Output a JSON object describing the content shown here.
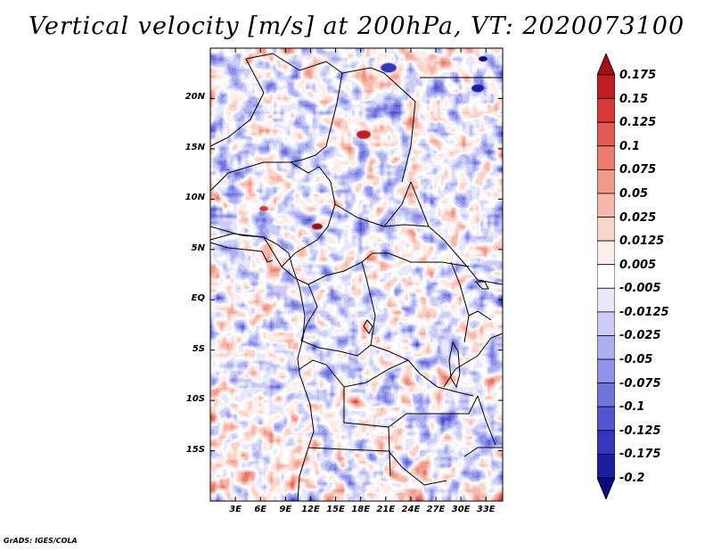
{
  "title": "Vertical velocity [m/s] at 200hPa, VT: 2020073100",
  "footer": "GrADS: IGES/COLA",
  "map": {
    "lon_range": [
      0,
      35
    ],
    "lat_range": [
      -20,
      25
    ],
    "lat_labels": [
      {
        "lat": 20,
        "label": "20N"
      },
      {
        "lat": 15,
        "label": "15N"
      },
      {
        "lat": 10,
        "label": "10N"
      },
      {
        "lat": 5,
        "label": "5N"
      },
      {
        "lat": 0,
        "label": "EQ"
      },
      {
        "lat": -5,
        "label": "5S"
      },
      {
        "lat": -10,
        "label": "10S"
      },
      {
        "lat": -15,
        "label": "15S"
      }
    ],
    "lon_labels": [
      {
        "lon": 3,
        "label": "3E"
      },
      {
        "lon": 6,
        "label": "6E"
      },
      {
        "lon": 9,
        "label": "9E"
      },
      {
        "lon": 12,
        "label": "12E"
      },
      {
        "lon": 15,
        "label": "15E"
      },
      {
        "lon": 18,
        "label": "18E"
      },
      {
        "lon": 21,
        "label": "21E"
      },
      {
        "lon": 24,
        "label": "24E"
      },
      {
        "lon": 27,
        "label": "27E"
      },
      {
        "lon": 30,
        "label": "30E"
      },
      {
        "lon": 33,
        "label": "33E"
      }
    ]
  },
  "colorbar": {
    "labels": [
      "0.175",
      "0.15",
      "0.125",
      "0.1",
      "0.075",
      "0.05",
      "0.025",
      "0.0125",
      "0.005",
      "-0.005",
      "-0.0125",
      "-0.025",
      "-0.05",
      "-0.075",
      "-0.1",
      "-0.125",
      "-0.175",
      "-0.2"
    ],
    "colors": [
      "#a10f14",
      "#c01e22",
      "#d53a36",
      "#e05a51",
      "#ea7c6e",
      "#f29b8d",
      "#f6b8ab",
      "#fad5cc",
      "#fdeeea",
      "#ffffff",
      "#e7e8fb",
      "#cbcdf6",
      "#adb0f0",
      "#8f92e8",
      "#7174de",
      "#5356d2",
      "#3437bd",
      "#1b1ea3",
      "#08097e"
    ]
  }
}
